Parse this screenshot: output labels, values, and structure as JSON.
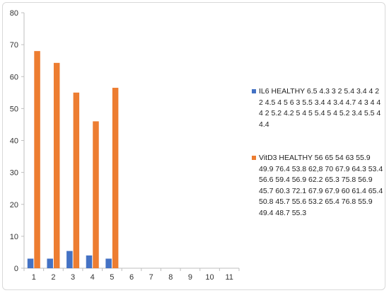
{
  "chart_data": {
    "type": "bar",
    "categories": [
      "1",
      "2",
      "3",
      "4",
      "5",
      "6",
      "7",
      "8",
      "9",
      "10",
      "11"
    ],
    "series": [
      {
        "name": "IL6 HEALTHY 6.5 4.3 3 2 5.4 3.4 4 2 2 4.5 4 5 6 3 5.5 3.4 4 3.4 4.7 4 3 4 4 4 2 5.2 4.2 5 4 5 5.4 5 4 5.2 3.4 5.5 4 4.4",
        "color": "#4472C4",
        "values": [
          3,
          3,
          5.4,
          4,
          3,
          null,
          null,
          null,
          null,
          null,
          null
        ]
      },
      {
        "name": "VitD3 HEALTHY 56 65 54 63 55.9 49.9 76.4 53.8 62,8 70 67.9 64.3 53.4 56.6 59.4 56.9 62.2 65.3 75.8 56.9 45.7 60.3 72.1 67.9 67.9 60 61.4 65.4 50.8 45.7 55.6 53.2 65.4 76.8 55.9 49.4 48.7 55.3",
        "color": "#ED7D31",
        "values": [
          68,
          64.3,
          55,
          46,
          56.5,
          null,
          null,
          null,
          null,
          null,
          null
        ]
      }
    ],
    "ylim": [
      0,
      80
    ],
    "yticks": [
      "0",
      "10",
      "20",
      "30",
      "40",
      "50",
      "60",
      "70",
      "80"
    ],
    "grid": false,
    "legend": "right"
  }
}
